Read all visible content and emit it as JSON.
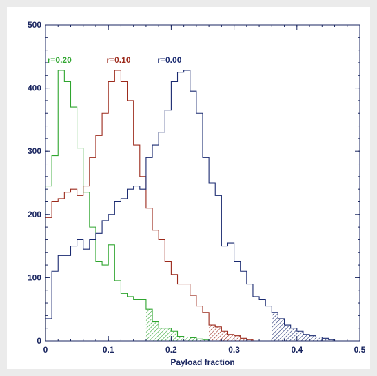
{
  "chart_data": {
    "type": "bar",
    "subtype": "step-histogram",
    "title": "",
    "xlabel": "Payload fraction",
    "ylabel": "",
    "xlim": [
      0,
      0.5
    ],
    "ylim": [
      0,
      500
    ],
    "x_ticks": [
      "0",
      "0.1",
      "0.2",
      "0.3",
      "0.4",
      "0.5"
    ],
    "y_ticks": [
      "0",
      "100",
      "200",
      "300",
      "400",
      "500"
    ],
    "bin_width": 0.01,
    "grid": false,
    "series": [
      {
        "name": "r=0.20",
        "color": "#2fa52f",
        "x_start": 0.0,
        "values": [
          245,
          293,
          428,
          410,
          370,
          305,
          235,
          180,
          125,
          120,
          152,
          95,
          75,
          70,
          65,
          65,
          50,
          30,
          20,
          20,
          15,
          7,
          6,
          5,
          3,
          2,
          0
        ],
        "hatched_from": 0.16
      },
      {
        "name": "r=0.10",
        "color": "#9c2a1c",
        "x_start": 0.0,
        "values": [
          195,
          220,
          225,
          235,
          240,
          230,
          245,
          290,
          325,
          360,
          410,
          428,
          410,
          380,
          310,
          260,
          210,
          175,
          160,
          125,
          105,
          90,
          90,
          72,
          55,
          45,
          25,
          22,
          15,
          10,
          8,
          4,
          2,
          0
        ],
        "hatched_from": 0.26
      },
      {
        "name": "r=0.00",
        "color": "#1a2a70",
        "x_start": 0.0,
        "values": [
          35,
          110,
          135,
          135,
          150,
          160,
          145,
          160,
          170,
          190,
          200,
          220,
          225,
          240,
          245,
          240,
          290,
          310,
          330,
          365,
          410,
          425,
          428,
          395,
          360,
          290,
          250,
          230,
          150,
          155,
          125,
          110,
          90,
          70,
          65,
          55,
          45,
          35,
          25,
          20,
          15,
          10,
          8,
          6,
          4,
          2,
          0
        ],
        "hatched_from": 0.36
      }
    ]
  }
}
